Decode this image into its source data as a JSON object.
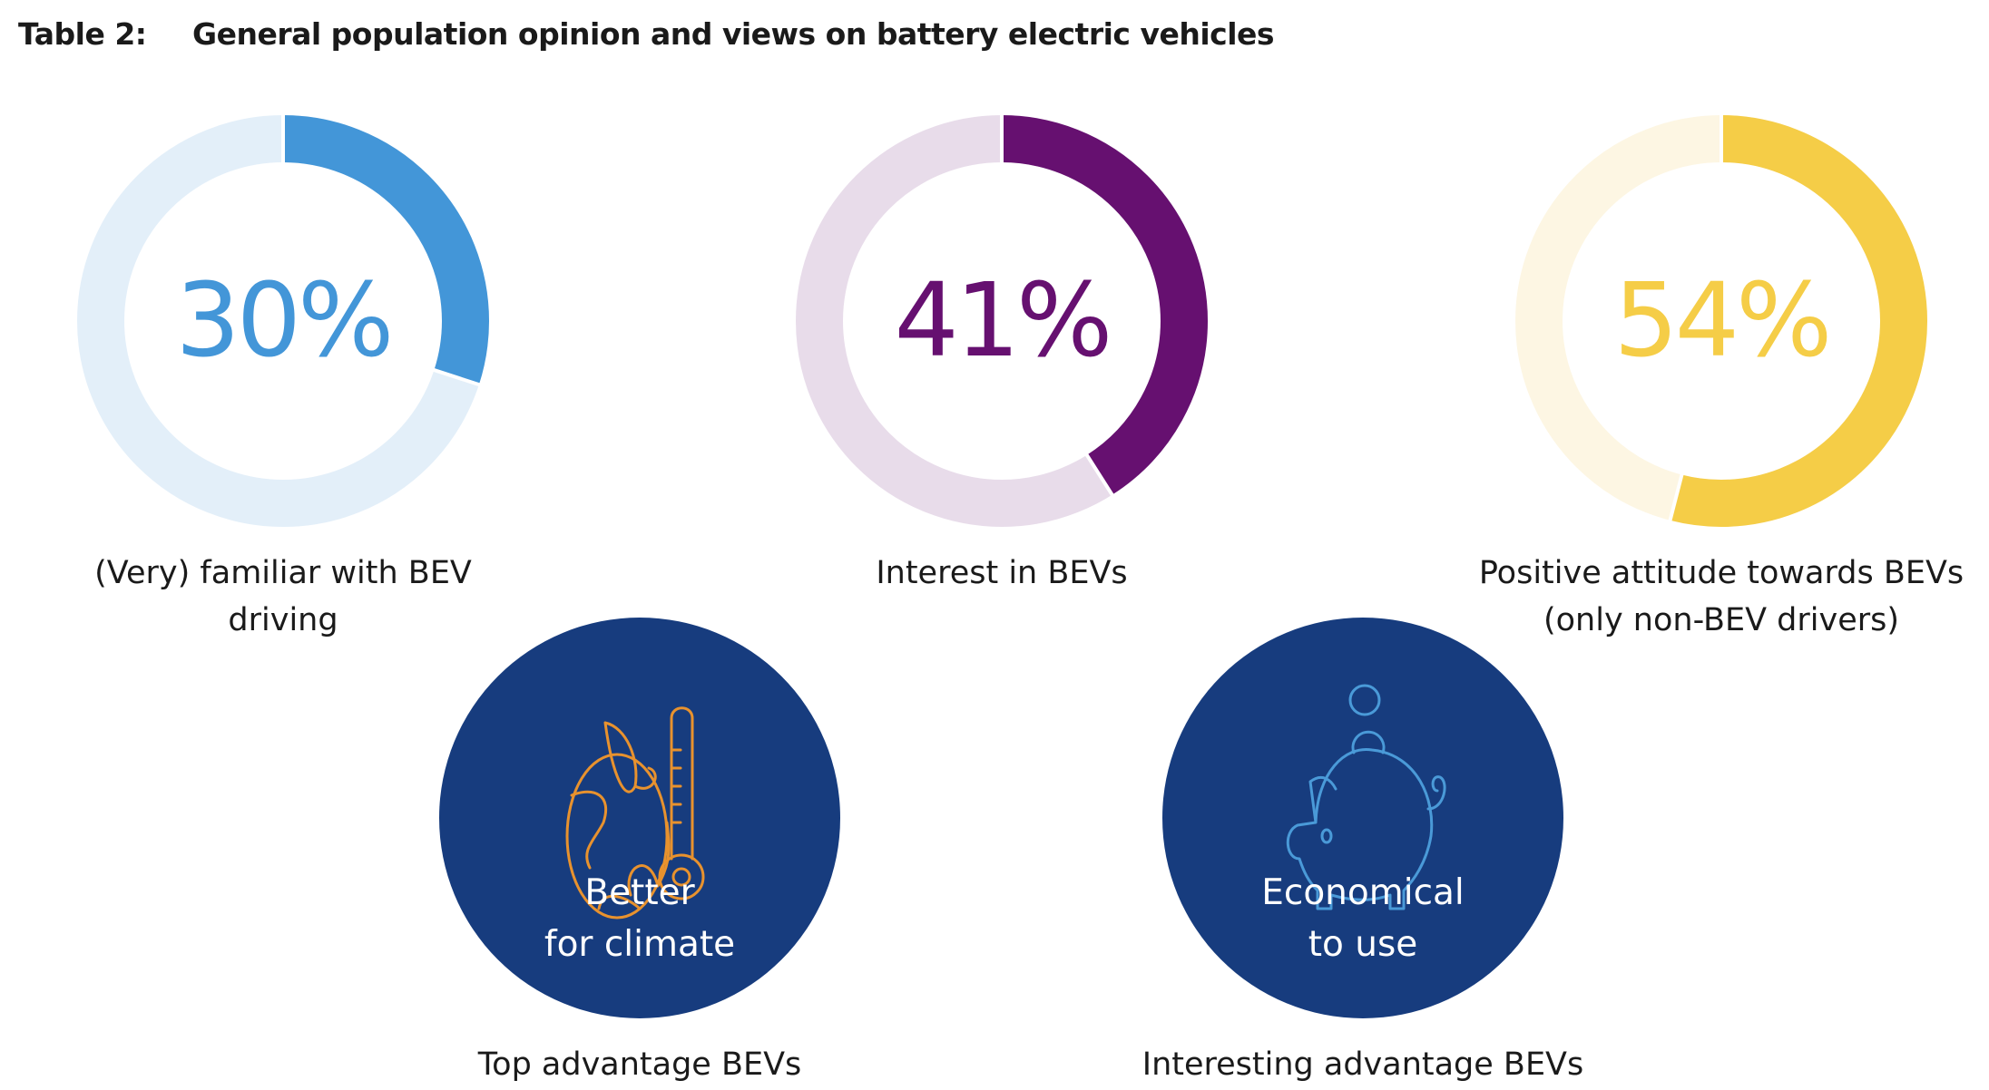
{
  "title": {
    "number": "Table 2:",
    "text": "General population opinion and views on battery electric vehicles"
  },
  "chart_data": {
    "type": "pie",
    "title": "General population opinion and views on battery electric vehicles",
    "donuts": [
      {
        "value": 30,
        "label_text": "30%",
        "caption": [
          "(Very) familiar with BEV",
          "driving"
        ],
        "color": "#4396d8",
        "track_color": "#e3eff9"
      },
      {
        "value": 41,
        "label_text": "41%",
        "caption": [
          "Interest in BEVs"
        ],
        "color": "#661070",
        "track_color": "#e8dcea"
      },
      {
        "value": 54,
        "label_text": "54%",
        "caption": [
          "Positive attitude towards BEVs",
          "(only non-BEV drivers)"
        ],
        "color": "#f5cd47",
        "track_color": "#fdf6e3"
      }
    ]
  },
  "advantages": [
    {
      "icon": "globe-thermometer-icon",
      "text": [
        "Better",
        "for climate"
      ],
      "caption": "Top advantage BEVs",
      "icon_color": "#e8922e"
    },
    {
      "icon": "piggy-bank-icon",
      "text": [
        "Economical",
        "to use"
      ],
      "caption": "Interesting advantage BEVs",
      "icon_color": "#4a9ad8"
    }
  ],
  "colors": {
    "circle_fill": "#173c7e",
    "circle_text": "#ffffff"
  }
}
